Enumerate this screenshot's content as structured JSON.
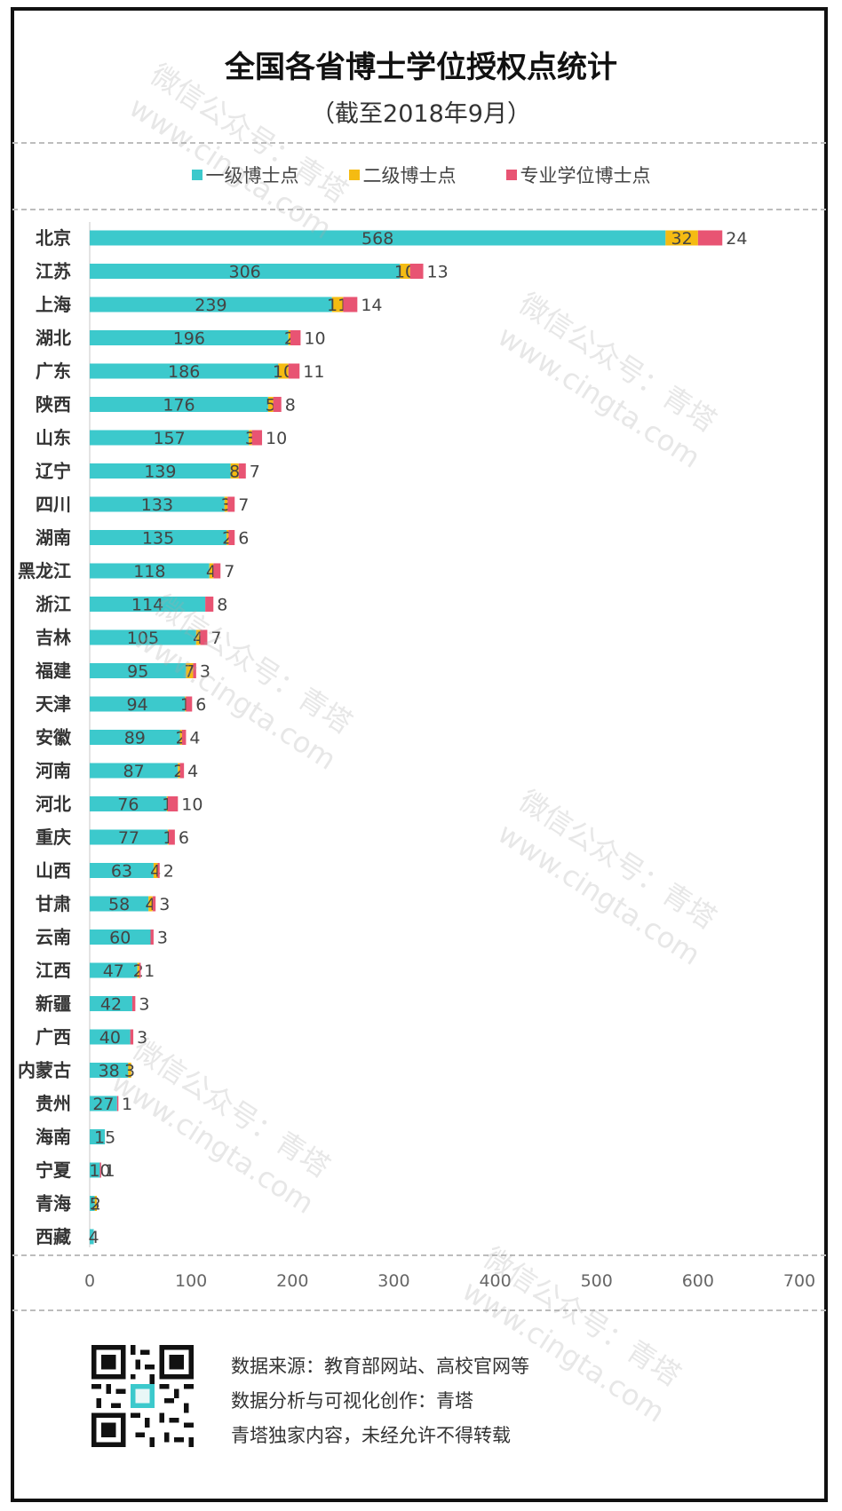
{
  "header": {
    "title": "全国各省博士学位授权点统计",
    "subtitle": "（截至2018年9月）"
  },
  "colors": {
    "first_level": "#3cc9cc",
    "second_level": "#f5bb12",
    "professional": "#e85473"
  },
  "chart_data": {
    "type": "bar",
    "orientation": "horizontal",
    "stacked": true,
    "categories": [
      "北京",
      "江苏",
      "上海",
      "湖北",
      "广东",
      "陕西",
      "山东",
      "辽宁",
      "四川",
      "湖南",
      "黑龙江",
      "浙江",
      "吉林",
      "福建",
      "天津",
      "安徽",
      "河南",
      "河北",
      "重庆",
      "山西",
      "甘肃",
      "云南",
      "江西",
      "新疆",
      "广西",
      "内蒙古",
      "贵州",
      "海南",
      "宁夏",
      "青海",
      "西藏"
    ],
    "series": [
      {
        "name": "一级博士点",
        "values": [
          568,
          306,
          239,
          196,
          186,
          176,
          157,
          139,
          133,
          135,
          118,
          114,
          105,
          95,
          94,
          89,
          87,
          76,
          77,
          63,
          58,
          60,
          47,
          42,
          40,
          38,
          27,
          15,
          10,
          5,
          4
        ]
      },
      {
        "name": "二级博士点",
        "values": [
          32,
          10,
          11,
          2,
          10,
          5,
          3,
          8,
          3,
          2,
          4,
          null,
          4,
          7,
          1,
          2,
          2,
          1,
          1,
          4,
          4,
          null,
          2,
          null,
          null,
          3,
          null,
          null,
          null,
          2,
          null
        ]
      },
      {
        "name": "专业学位博士点",
        "values": [
          24,
          13,
          14,
          10,
          11,
          8,
          10,
          7,
          7,
          6,
          7,
          8,
          7,
          3,
          6,
          4,
          4,
          10,
          6,
          2,
          3,
          3,
          1,
          3,
          3,
          null,
          1,
          null,
          1,
          null,
          null
        ]
      }
    ],
    "xlim": [
      0,
      700
    ],
    "xticks": [
      "0",
      "100",
      "200",
      "300",
      "400",
      "500",
      "600",
      "700"
    ],
    "grid": false,
    "legend_position": "top"
  },
  "footer": {
    "source": "数据来源：教育部网站、高校官网等",
    "credit": "数据分析与可视化创作：青塔",
    "notice": "青塔独家内容，未经允许不得转载"
  },
  "watermark": {
    "line1": "微信公众号：青塔",
    "line2": "www.cingta.com"
  }
}
